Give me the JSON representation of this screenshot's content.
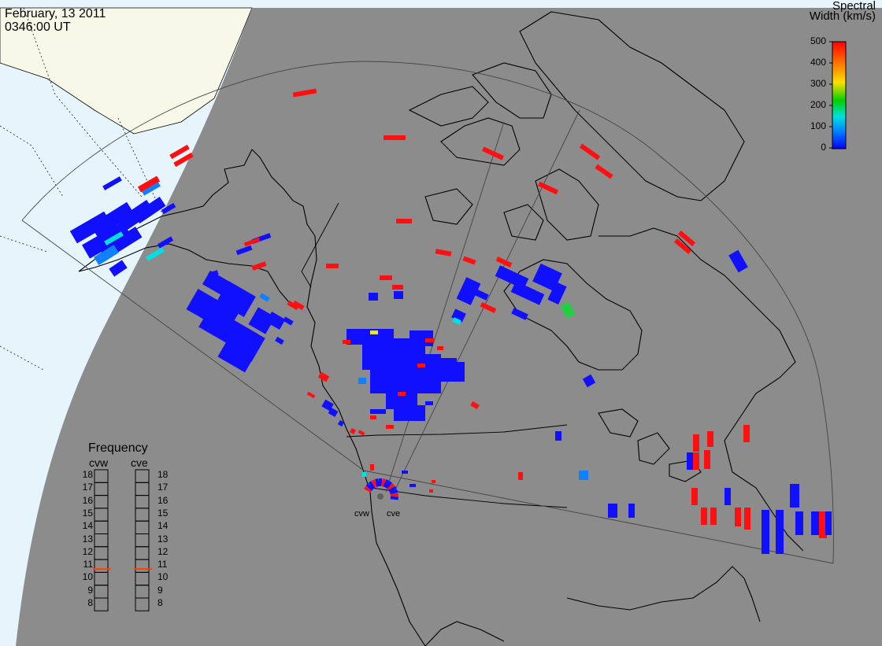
{
  "header": {
    "date": "February, 13 2011",
    "time": "0346:00 UT"
  },
  "colorbar": {
    "title_line1": "Spectral",
    "title_line2": "Width (km/s)",
    "ticks": [
      "500",
      "400",
      "300",
      "200",
      "100",
      "0"
    ],
    "colors": [
      "#0000ff",
      "#0080ff",
      "#00e0e0",
      "#00d000",
      "#ffe000",
      "#ff8000",
      "#ff0000"
    ]
  },
  "frequency_panel": {
    "title": "Frequency",
    "radars": [
      "cvw",
      "cve"
    ],
    "scale": [
      "18",
      "17",
      "16",
      "15",
      "14",
      "13",
      "12",
      "11",
      "10",
      "9",
      "8"
    ],
    "current_mhz": {
      "cvw": 10.7,
      "cve": 10.7
    }
  },
  "sites": {
    "west": "cvw",
    "east": "cve"
  },
  "colors": {
    "night": "#8c8c8c",
    "ocean_day": "#e6f5fc",
    "land_day": "#f8f8e8",
    "coast": "#000000",
    "low_width": "#0000ff",
    "high_width": "#ff0000"
  }
}
